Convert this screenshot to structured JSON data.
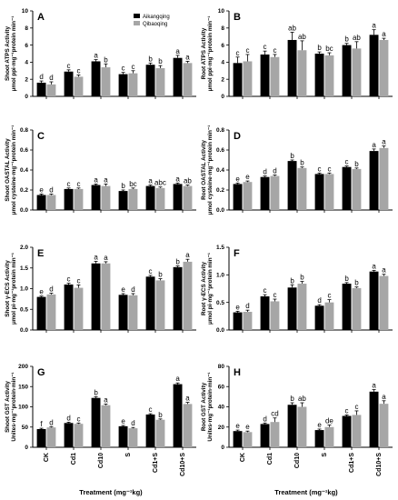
{
  "colors": {
    "s1": "#000000",
    "s2": "#a6a6a6"
  },
  "legend": [
    "Aikangqing",
    "Qibaoqing"
  ],
  "x_title": "Treatment (mg⁻¹kg)",
  "chart_data": [
    {
      "type": "bar",
      "panel": "A",
      "ylabel": [
        "Shoot ATPS Activity",
        "μmol ppi·mg⁻¹protein min⁻¹"
      ],
      "categories": [
        "CK",
        "Cd1",
        "Cd10",
        "S",
        "Cd1+S",
        "Cd10+S"
      ],
      "ylim": [
        0,
        10
      ],
      "yticks": [
        0,
        2,
        4,
        6,
        8,
        10
      ],
      "series": [
        {
          "name": "Aikangqing",
          "values": [
            1.6,
            2.9,
            4.1,
            2.6,
            3.7,
            4.5
          ],
          "errors": [
            0.2,
            0.2,
            0.2,
            0.2,
            0.2,
            0.3
          ],
          "letters": [
            "d",
            "c",
            "a",
            "c",
            "b",
            "a"
          ]
        },
        {
          "name": "Qibaoqing",
          "values": [
            1.4,
            2.3,
            3.4,
            2.7,
            3.3,
            3.9
          ],
          "errors": [
            0.3,
            0.2,
            0.4,
            0.3,
            0.3,
            0.2
          ],
          "letters": [
            "d",
            "c",
            "b",
            "c",
            "b",
            "a"
          ]
        }
      ]
    },
    {
      "type": "bar",
      "panel": "B",
      "ylabel": [
        "Root ATPS Activity",
        "μmol ppi·mg⁻¹protein min⁻¹"
      ],
      "categories": [
        "CK",
        "Cd1",
        "Cd10",
        "S",
        "Cd1+S",
        "Cd10+S"
      ],
      "ylim": [
        0,
        10
      ],
      "yticks": [
        0,
        2,
        4,
        6,
        8,
        10
      ],
      "series": [
        {
          "name": "Aikangqing",
          "values": [
            3.9,
            4.9,
            6.6,
            5.0,
            6.0,
            7.2
          ],
          "errors": [
            0.7,
            0.4,
            0.9,
            0.2,
            0.2,
            0.6
          ],
          "letters": [
            "c",
            "c",
            "ab",
            "b",
            "b",
            "a"
          ]
        },
        {
          "name": "Qibaoqing",
          "values": [
            4.1,
            4.6,
            5.4,
            4.8,
            5.6,
            6.6
          ],
          "errors": [
            0.8,
            0.3,
            1.1,
            0.3,
            0.8,
            0.2
          ],
          "letters": [
            "c",
            "c",
            "ab",
            "bc",
            "ab",
            "a"
          ]
        }
      ]
    },
    {
      "type": "bar",
      "panel": "C",
      "ylabel": [
        "Shoot OASTAL  Activity",
        "μmol cysteine·mg⁻¹protein min⁻¹"
      ],
      "categories": [
        "CK",
        "Cd1",
        "Cd10",
        "S",
        "Cd1+S",
        "Cd10+S"
      ],
      "ylim": [
        0,
        0.8
      ],
      "yticks": [
        0,
        0.2,
        0.4,
        0.6,
        0.8
      ],
      "series": [
        {
          "name": "Aikangqing",
          "values": [
            0.15,
            0.21,
            0.25,
            0.19,
            0.24,
            0.26
          ],
          "errors": [
            0.01,
            0.01,
            0.01,
            0.01,
            0.01,
            0.01
          ],
          "letters": [
            "e",
            "c",
            "a",
            "b",
            "a",
            "a"
          ]
        },
        {
          "name": "Qibaoqing",
          "values": [
            0.15,
            0.21,
            0.24,
            0.21,
            0.22,
            0.24
          ],
          "errors": [
            0.01,
            0.01,
            0.02,
            0.01,
            0.01,
            0.01
          ],
          "letters": [
            "d",
            "c",
            "a",
            "bc",
            "abc",
            "ab"
          ]
        }
      ]
    },
    {
      "type": "bar",
      "panel": "D",
      "ylabel": [
        "Root OASTAL  Activity",
        "μmol cysteine·mg⁻¹protein min⁻¹"
      ],
      "categories": [
        "CK",
        "Cd1",
        "Cd10",
        "S",
        "Cd1+S",
        "Cd10+S"
      ],
      "ylim": [
        0,
        0.8
      ],
      "yticks": [
        0,
        0.2,
        0.4,
        0.6,
        0.8
      ],
      "series": [
        {
          "name": "Aikangqing",
          "values": [
            0.26,
            0.33,
            0.49,
            0.36,
            0.43,
            0.59
          ],
          "errors": [
            0.01,
            0.01,
            0.01,
            0.01,
            0.01,
            0.02
          ],
          "letters": [
            "e",
            "d",
            "b",
            "c",
            "c",
            "a"
          ]
        },
        {
          "name": "Qibaoqing",
          "values": [
            0.28,
            0.34,
            0.42,
            0.36,
            0.41,
            0.62
          ],
          "errors": [
            0.01,
            0.01,
            0.01,
            0.01,
            0.01,
            0.02
          ],
          "letters": [
            "e",
            "d",
            "b",
            "c",
            "b",
            "a"
          ]
        }
      ]
    },
    {
      "type": "bar",
      "panel": "E",
      "ylabel": [
        "Shoot γ-ECS  Activity",
        "μmol pi·mg⁻¹protein min⁻¹"
      ],
      "categories": [
        "CK",
        "Cd1",
        "Cd10",
        "S",
        "Cd1+S",
        "Cd10+S"
      ],
      "ylim": [
        0,
        2.0
      ],
      "yticks": [
        0,
        0.5,
        1.0,
        1.5,
        2.0
      ],
      "series": [
        {
          "name": "Aikangqing",
          "values": [
            0.8,
            1.1,
            1.61,
            0.85,
            1.29,
            1.52
          ],
          "errors": [
            0.02,
            0.03,
            0.05,
            0.03,
            0.03,
            0.03
          ],
          "letters": [
            "e",
            "c",
            "a",
            "e",
            "c",
            "b"
          ]
        },
        {
          "name": "Qibaoqing",
          "values": [
            0.86,
            1.02,
            1.61,
            0.84,
            1.2,
            1.65
          ],
          "errors": [
            0.03,
            0.07,
            0.04,
            0.04,
            0.04,
            0.06
          ],
          "letters": [
            "d",
            "c",
            "a",
            "d",
            "b",
            "a"
          ]
        }
      ]
    },
    {
      "type": "bar",
      "panel": "F",
      "ylabel": [
        "Root γ-ECS  Activity",
        "μmol pi·mg⁻¹protein min⁻¹"
      ],
      "categories": [
        "CK",
        "Cd1",
        "Cd10",
        "S",
        "Cd1+S",
        "Cd10+S"
      ],
      "ylim": [
        0,
        1.5
      ],
      "yticks": [
        0,
        0.5,
        1.0,
        1.5
      ],
      "series": [
        {
          "name": "Aikangqing",
          "values": [
            0.32,
            0.61,
            0.77,
            0.44,
            0.84,
            1.06
          ],
          "errors": [
            0.02,
            0.03,
            0.05,
            0.02,
            0.02,
            0.02
          ],
          "letters": [
            "e",
            "c",
            "b",
            "d",
            "b",
            "a"
          ]
        },
        {
          "name": "Qibaoqing",
          "values": [
            0.33,
            0.52,
            0.84,
            0.5,
            0.76,
            0.98
          ],
          "errors": [
            0.03,
            0.04,
            0.04,
            0.05,
            0.02,
            0.03
          ],
          "letters": [
            "d",
            "c",
            "b",
            "c",
            "b",
            "a"
          ]
        }
      ]
    },
    {
      "type": "bar",
      "panel": "G",
      "ylabel": [
        "Shoot GST Activity",
        "Unites·mg⁻¹protein·min⁻¹"
      ],
      "categories": [
        "CK",
        "Cd1",
        "Cd10",
        "S",
        "Cd1+S",
        "Cd10+S"
      ],
      "ylim": [
        0,
        200
      ],
      "yticks": [
        0,
        50,
        100,
        150,
        200
      ],
      "series": [
        {
          "name": "Aikangqing",
          "values": [
            45,
            60,
            122,
            52,
            81,
            156
          ],
          "errors": [
            2,
            2,
            3,
            2,
            2,
            3
          ],
          "letters": [
            "f",
            "d",
            "b",
            "e",
            "c",
            "a"
          ]
        },
        {
          "name": "Qibaoqing",
          "values": [
            49,
            58,
            104,
            47,
            68,
            107
          ],
          "errors": [
            2,
            2,
            3,
            2,
            2,
            4
          ],
          "letters": [
            "d",
            "c",
            "a",
            "d",
            "b",
            "a"
          ]
        }
      ]
    },
    {
      "type": "bar",
      "panel": "H",
      "ylabel": [
        "Root GST Activity",
        "Unites·mg⁻¹protein·min⁻¹"
      ],
      "categories": [
        "CK",
        "Cd1",
        "Cd10",
        "S",
        "Cd1+S",
        "Cd10+S"
      ],
      "ylim": [
        0,
        80
      ],
      "yticks": [
        0,
        20,
        40,
        60,
        80
      ],
      "series": [
        {
          "name": "Aikangqing",
          "values": [
            16,
            23,
            42,
            17,
            31,
            55
          ],
          "errors": [
            1,
            1,
            2,
            1,
            1,
            2
          ],
          "letters": [
            "e",
            "d",
            "b",
            "e",
            "c",
            "a"
          ]
        },
        {
          "name": "Qibaoqing",
          "values": [
            15,
            25,
            40,
            20,
            32,
            43
          ],
          "errors": [
            1,
            4,
            4,
            2,
            4,
            3
          ],
          "letters": [
            "e",
            "cd",
            "ab",
            "de",
            "c",
            "a"
          ]
        }
      ]
    }
  ]
}
